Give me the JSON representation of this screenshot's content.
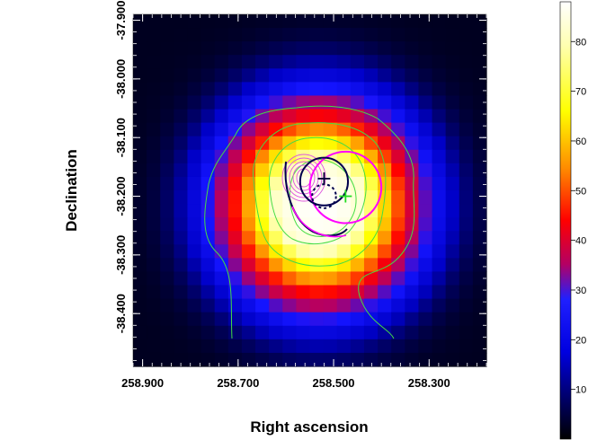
{
  "chart_data": {
    "type": "heatmap",
    "title": "",
    "xlabel": "Right ascension",
    "ylabel": "Declination",
    "x_ticks": [
      {
        "value": 258.9,
        "label": "258.900"
      },
      {
        "value": 258.7,
        "label": "258.700"
      },
      {
        "value": 258.5,
        "label": "258.500"
      },
      {
        "value": 258.3,
        "label": "258.300"
      }
    ],
    "y_ticks": [
      {
        "value": -37.9,
        "label": "-37.900"
      },
      {
        "value": -38.0,
        "label": "-38.000"
      },
      {
        "value": -38.1,
        "label": "-38.100"
      },
      {
        "value": -38.2,
        "label": "-38.200"
      },
      {
        "value": -38.3,
        "label": "-38.300"
      },
      {
        "value": -38.4,
        "label": "-38.400"
      }
    ],
    "xlim": [
      258.92,
      258.18
    ],
    "ylim": [
      -38.49,
      -37.89
    ],
    "colormap": [
      "#000000",
      "#0000c8",
      "#1414ff",
      "#b40064",
      "#ff0000",
      "#ff8c00",
      "#ffff00",
      "#ffffc8",
      "#ffffff"
    ],
    "colorbar": {
      "range": [
        0,
        88
      ],
      "ticks": [
        {
          "value": 10,
          "label": "10"
        },
        {
          "value": 20,
          "label": "20"
        },
        {
          "value": 30,
          "label": "30"
        },
        {
          "value": 40,
          "label": "40"
        },
        {
          "value": 50,
          "label": "50"
        },
        {
          "value": 60,
          "label": "60"
        },
        {
          "value": 70,
          "label": "70"
        },
        {
          "value": 80,
          "label": "80"
        }
      ]
    },
    "source_center": {
      "ra": 258.53,
      "dec": -38.215
    },
    "peak_value": 88,
    "markers": [
      {
        "type": "cross",
        "color": "#22dd22",
        "ra": 258.475,
        "dec": -38.2
      },
      {
        "type": "cross",
        "color": "#000033",
        "ra": 258.52,
        "dec": -38.17
      }
    ],
    "circles": [
      {
        "color": "#ff00ff",
        "ra": 258.475,
        "dec": -38.185,
        "radius_deg": 0.075
      },
      {
        "color": "#00004d",
        "ra": 258.52,
        "dec": -38.175,
        "radius_deg": 0.05
      },
      {
        "color": "#00004d",
        "style": "dashed",
        "ra": 258.52,
        "dec": -38.2,
        "radius_deg": 0.025
      }
    ]
  }
}
